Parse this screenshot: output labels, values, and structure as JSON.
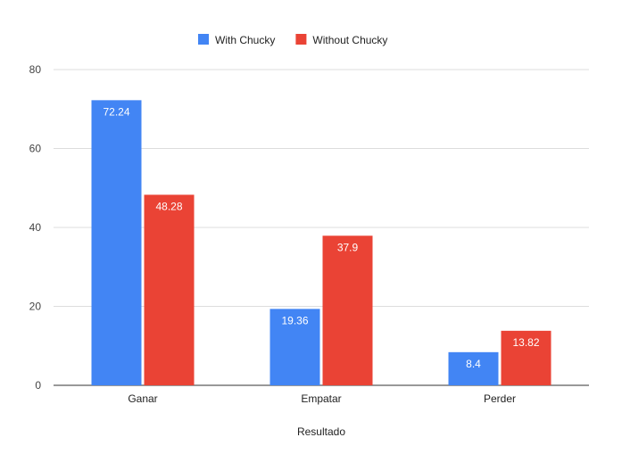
{
  "chart_data": {
    "type": "bar",
    "title": "",
    "xlabel": "Resultado",
    "ylabel": "",
    "ylim": [
      0,
      80
    ],
    "yticks": [
      0,
      20,
      40,
      60,
      80
    ],
    "categories": [
      "Ganar",
      "Empatar",
      "Perder"
    ],
    "series": [
      {
        "name": "With Chucky",
        "color": "#4285f4",
        "values": [
          72.24,
          19.36,
          8.4
        ]
      },
      {
        "name": "Without Chucky",
        "color": "#ea4335",
        "values": [
          48.28,
          37.9,
          13.82
        ]
      }
    ],
    "grid": true,
    "legend": "top-center"
  }
}
